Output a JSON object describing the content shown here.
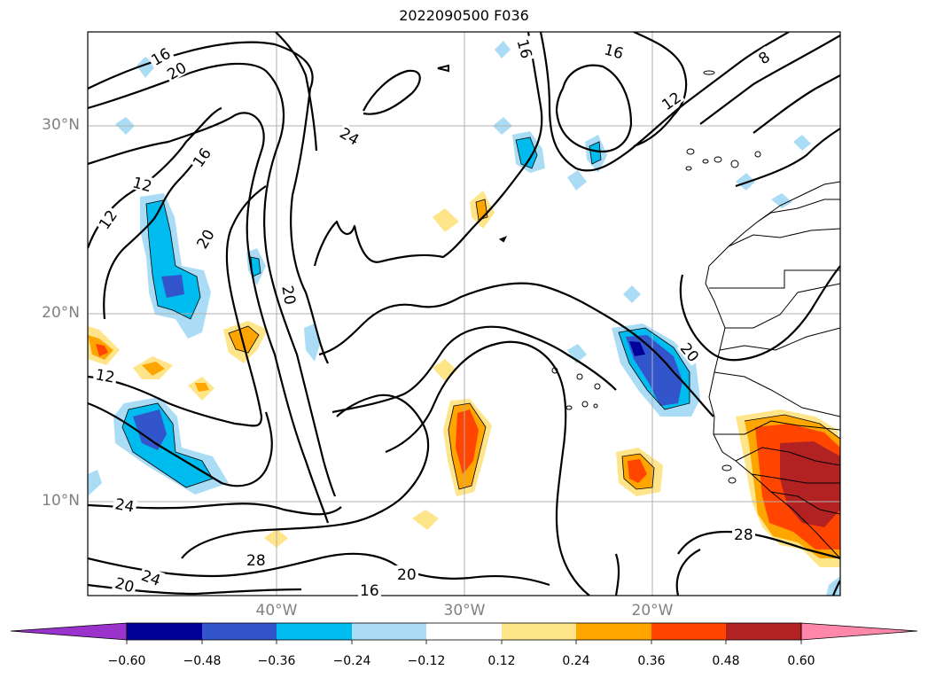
{
  "title": "2022090500 F036",
  "lat_labels": [
    "30°N",
    "20°N",
    "10°N"
  ],
  "lon_labels": [
    "40°W",
    "30°W",
    "20°W"
  ],
  "contour_labels": [
    "16",
    "20",
    "16",
    "16",
    "8",
    "12",
    "24",
    "16",
    "12",
    "12",
    "20",
    "20",
    "20",
    "12",
    "24",
    "28",
    "24",
    "20",
    "16",
    "20",
    "28"
  ],
  "colorbar": {
    "ticks": [
      "-0.60",
      "-0.48",
      "-0.36",
      "-0.24",
      "-0.12",
      "0.12",
      "0.24",
      "0.36",
      "0.48",
      "0.60"
    ],
    "colors": [
      "#9a33cc",
      "#000099",
      "#3355cc",
      "#00bbee",
      "#aaddf5",
      "#ffffff",
      "#ffe589",
      "#ffa500",
      "#ff4500",
      "#b22222",
      "#ff88aa"
    ]
  }
}
